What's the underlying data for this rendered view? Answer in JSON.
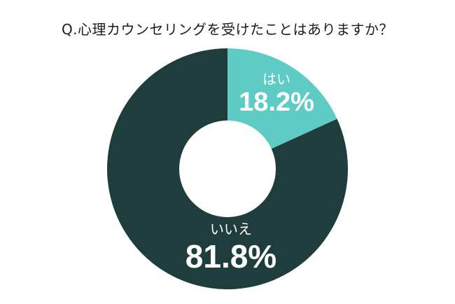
{
  "title": "Q.心理カウンセリングを受けたことはありますか？",
  "colors": {
    "yes": "#5ecbc4",
    "no": "#1f3d3d",
    "text_on_slice": "#ffffff",
    "title": "#1c1c1c"
  },
  "slices": [
    {
      "label": "はい",
      "value_text": "18.2%",
      "value": 18.2
    },
    {
      "label": "いいえ",
      "value_text": "81.8%",
      "value": 81.8
    }
  ],
  "chart_data": {
    "type": "pie",
    "subtype": "donut",
    "title": "Q.心理カウンセリングを受けたことはありますか？",
    "categories": [
      "はい",
      "いいえ"
    ],
    "values": [
      18.2,
      81.8
    ],
    "unit": "%",
    "start_angle": "12 o'clock, clockwise",
    "legend": "none (labels inside slices)"
  }
}
